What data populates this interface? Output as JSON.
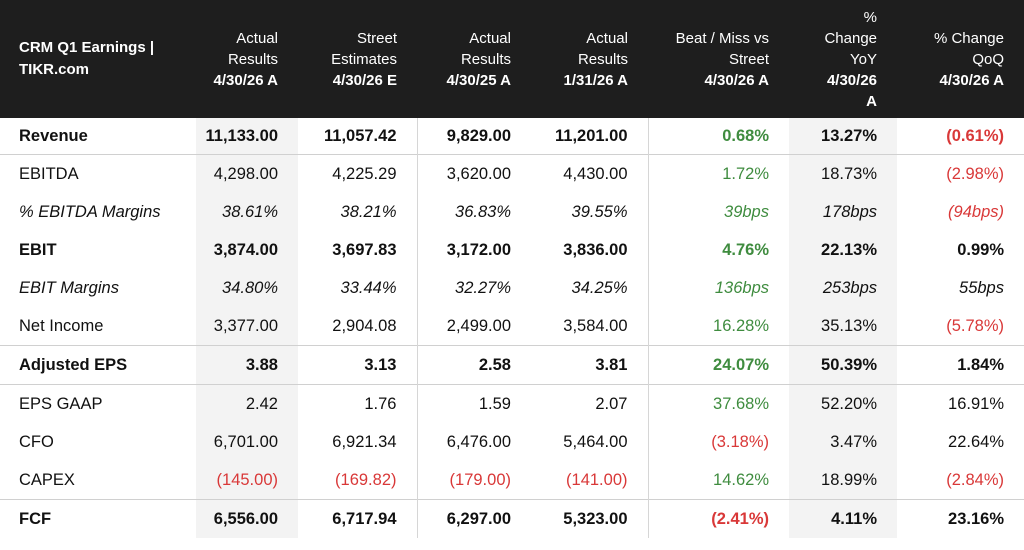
{
  "header": {
    "title_line1": "CRM Q1 Earnings |",
    "title_line2": "TIKR.com",
    "columns": [
      {
        "l1": "Actual",
        "l2": "Results",
        "l3": "",
        "d1": "4/30/26 A",
        "d2": ""
      },
      {
        "l1": "Street",
        "l2": "Estimates",
        "l3": "",
        "d1": "4/30/26 E",
        "d2": ""
      },
      {
        "l1": "Actual",
        "l2": "Results",
        "l3": "",
        "d1": "4/30/25 A",
        "d2": ""
      },
      {
        "l1": "Actual",
        "l2": "Results",
        "l3": "",
        "d1": "1/31/26 A",
        "d2": ""
      },
      {
        "l1": "Beat / Miss vs",
        "l2": "Street",
        "l3": "",
        "d1": "4/30/26 A",
        "d2": ""
      },
      {
        "l1": "%",
        "l2": "Change",
        "l3": "YoY",
        "d1": "4/30/26",
        "d2": "A"
      },
      {
        "l1": "% Change",
        "l2": "QoQ",
        "l3": "",
        "d1": "4/30/26 A",
        "d2": ""
      }
    ]
  },
  "rows": [
    {
      "label": "Revenue",
      "cells": [
        "11,133.00",
        "11,057.42",
        "9,829.00",
        "11,201.00",
        "0.68%",
        "13.27%",
        "(0.61%)"
      ]
    },
    {
      "label": "EBITDA",
      "cells": [
        "4,298.00",
        "4,225.29",
        "3,620.00",
        "4,430.00",
        "1.72%",
        "18.73%",
        "(2.98%)"
      ]
    },
    {
      "label": "% EBITDA Margins",
      "cells": [
        "38.61%",
        "38.21%",
        "36.83%",
        "39.55%",
        "39bps",
        "178bps",
        "(94bps)"
      ]
    },
    {
      "label": "EBIT",
      "cells": [
        "3,874.00",
        "3,697.83",
        "3,172.00",
        "3,836.00",
        "4.76%",
        "22.13%",
        "0.99%"
      ]
    },
    {
      "label": "EBIT Margins",
      "cells": [
        "34.80%",
        "33.44%",
        "32.27%",
        "34.25%",
        "136bps",
        "253bps",
        "55bps"
      ]
    },
    {
      "label": "Net Income",
      "cells": [
        "3,377.00",
        "2,904.08",
        "2,499.00",
        "3,584.00",
        "16.28%",
        "35.13%",
        "(5.78%)"
      ]
    },
    {
      "label": "Adjusted EPS",
      "cells": [
        "3.88",
        "3.13",
        "2.58",
        "3.81",
        "24.07%",
        "50.39%",
        "1.84%"
      ]
    },
    {
      "label": "EPS GAAP",
      "cells": [
        "2.42",
        "1.76",
        "1.59",
        "2.07",
        "37.68%",
        "52.20%",
        "16.91%"
      ]
    },
    {
      "label": "CFO",
      "cells": [
        "6,701.00",
        "6,921.34",
        "6,476.00",
        "5,464.00",
        "(3.18%)",
        "3.47%",
        "22.64%"
      ]
    },
    {
      "label": "CAPEX",
      "cells": [
        "(145.00)",
        "(169.82)",
        "(179.00)",
        "(141.00)",
        "14.62%",
        "18.99%",
        "(2.84%)"
      ]
    },
    {
      "label": "FCF",
      "cells": [
        "6,556.00",
        "6,717.94",
        "6,297.00",
        "5,323.00",
        "(2.41%)",
        "4.11%",
        "23.16%"
      ]
    }
  ],
  "colors": {
    "header_bg": "#1e1e1e",
    "positive": "#3f8c3f",
    "negative": "#d93838",
    "shaded_column": "#f3f3f3"
  }
}
